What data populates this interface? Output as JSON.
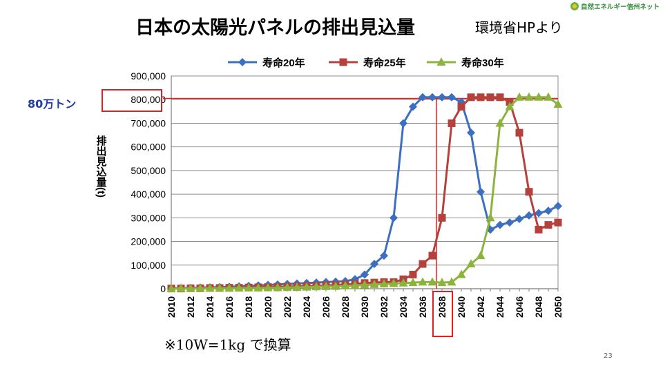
{
  "header": {
    "title": "日本の太陽光パネルの排出見込量",
    "source": "環境省HPより",
    "logo_text": "自然エネルギー信州ネット"
  },
  "callout": {
    "label": "80万トン"
  },
  "footer": {
    "note": "※10W=1kg で換算",
    "page_number": "23"
  },
  "colors": {
    "series_20": "#3c6fbf",
    "series_25": "#b5413c",
    "series_30": "#8cb43c",
    "highlight": "#e02020"
  },
  "chart_data": {
    "type": "line",
    "ylabel": "排出見込量(t)",
    "xlabel": "",
    "ylim": [
      0,
      900000
    ],
    "y_ticks": [
      "0",
      "100,000",
      "200,000",
      "300,000",
      "400,000",
      "500,000",
      "600,000",
      "700,000",
      "800,000",
      "900,000"
    ],
    "x_ticks": [
      "2010",
      "2012",
      "2014",
      "2016",
      "2018",
      "2020",
      "2022",
      "2024",
      "2026",
      "2028",
      "2030",
      "2032",
      "2034",
      "2036",
      "2038",
      "2040",
      "2042",
      "2044",
      "2046",
      "2048",
      "2050"
    ],
    "grid": true,
    "legend_position": "top",
    "reference_line": 805000,
    "highlighted_x": "2038",
    "x": [
      2010,
      2011,
      2012,
      2013,
      2014,
      2015,
      2016,
      2017,
      2018,
      2019,
      2020,
      2021,
      2022,
      2023,
      2024,
      2025,
      2026,
      2027,
      2028,
      2029,
      2030,
      2031,
      2032,
      2033,
      2034,
      2035,
      2036,
      2037,
      2038,
      2039,
      2040,
      2041,
      2042,
      2043,
      2044,
      2045,
      2046,
      2047,
      2048,
      2049,
      2050
    ],
    "series": [
      {
        "name": "寿命20年",
        "marker": "diamond",
        "values": [
          2000,
          3000,
          4000,
          5000,
          6000,
          7000,
          8000,
          10000,
          12000,
          14000,
          16000,
          18000,
          20000,
          22000,
          24000,
          26000,
          28000,
          30000,
          32000,
          40000,
          60000,
          105000,
          140000,
          300000,
          700000,
          770000,
          810000,
          810000,
          810000,
          810000,
          790000,
          660000,
          410000,
          250000,
          270000,
          280000,
          295000,
          310000,
          320000,
          330000,
          350000
        ]
      },
      {
        "name": "寿命25年",
        "marker": "square",
        "values": [
          1000,
          1000,
          2000,
          2000,
          3000,
          3000,
          4000,
          4000,
          5000,
          6000,
          7000,
          8000,
          9000,
          10000,
          11000,
          12000,
          14000,
          16000,
          18000,
          20000,
          24000,
          26000,
          28000,
          28000,
          40000,
          60000,
          105000,
          140000,
          300000,
          700000,
          770000,
          810000,
          810000,
          810000,
          810000,
          790000,
          660000,
          410000,
          250000,
          270000,
          280000
        ]
      },
      {
        "name": "寿命30年",
        "marker": "triangle",
        "values": [
          0,
          1000,
          1000,
          1000,
          2000,
          2000,
          2000,
          3000,
          3000,
          3000,
          4000,
          4000,
          5000,
          6000,
          7000,
          8000,
          9000,
          10000,
          12000,
          14000,
          16000,
          18000,
          20000,
          22000,
          24000,
          26000,
          28000,
          28000,
          26000,
          28000,
          60000,
          105000,
          140000,
          300000,
          700000,
          770000,
          810000,
          810000,
          810000,
          810000,
          780000
        ]
      }
    ]
  }
}
